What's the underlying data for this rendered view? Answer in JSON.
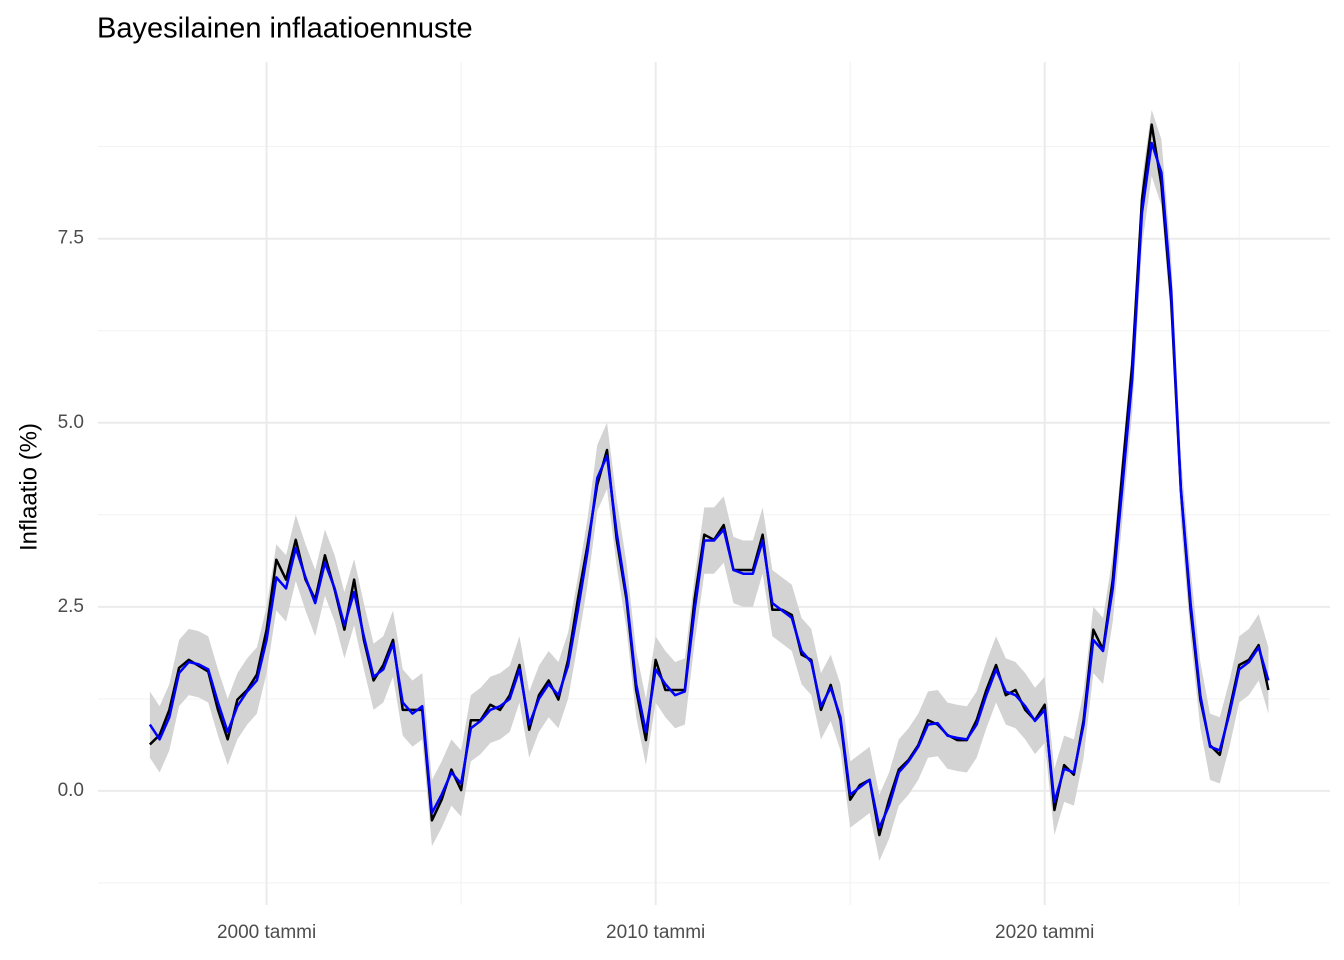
{
  "chart_data": {
    "type": "line",
    "title": "Bayesilainen inflaatioennuste",
    "y_label": "Inflaatio (%)",
    "x": [
      "1997-01",
      "1997-04",
      "1997-07",
      "1997-10",
      "1998-01",
      "1998-04",
      "1998-07",
      "1998-10",
      "1999-01",
      "1999-04",
      "1999-07",
      "1999-10",
      "2000-01",
      "2000-04",
      "2000-07",
      "2000-10",
      "2001-01",
      "2001-04",
      "2001-07",
      "2001-10",
      "2002-01",
      "2002-04",
      "2002-07",
      "2002-10",
      "2003-01",
      "2003-04",
      "2003-07",
      "2003-10",
      "2004-01",
      "2004-04",
      "2004-07",
      "2004-10",
      "2005-01",
      "2005-04",
      "2005-07",
      "2005-10",
      "2006-01",
      "2006-04",
      "2006-07",
      "2006-10",
      "2007-01",
      "2007-04",
      "2007-07",
      "2007-10",
      "2008-01",
      "2008-04",
      "2008-07",
      "2008-10",
      "2009-01",
      "2009-04",
      "2009-07",
      "2009-10",
      "2010-01",
      "2010-04",
      "2010-07",
      "2010-10",
      "2011-01",
      "2011-04",
      "2011-07",
      "2011-10",
      "2012-01",
      "2012-04",
      "2012-07",
      "2012-10",
      "2013-01",
      "2013-04",
      "2013-07",
      "2013-10",
      "2014-01",
      "2014-04",
      "2014-07",
      "2014-10",
      "2015-01",
      "2015-04",
      "2015-07",
      "2015-10",
      "2016-01",
      "2016-04",
      "2016-07",
      "2016-10",
      "2017-01",
      "2017-04",
      "2017-07",
      "2017-10",
      "2018-01",
      "2018-04",
      "2018-07",
      "2018-10",
      "2019-01",
      "2019-04",
      "2019-07",
      "2019-10",
      "2020-01",
      "2020-04",
      "2020-07",
      "2020-10",
      "2021-01",
      "2021-04",
      "2021-07",
      "2021-10",
      "2022-01",
      "2022-04",
      "2022-07",
      "2022-10",
      "2023-01",
      "2023-04",
      "2023-07",
      "2023-10",
      "2024-01",
      "2024-04",
      "2024-07",
      "2024-10",
      "2025-01",
      "2025-04",
      "2025-07",
      "2025-10"
    ],
    "series": [
      {
        "color": "#000000",
        "values": [
          0.63,
          0.76,
          1.1,
          1.67,
          1.78,
          1.7,
          1.62,
          1.1,
          0.7,
          1.24,
          1.37,
          1.58,
          2.19,
          3.14,
          2.87,
          3.41,
          2.87,
          2.6,
          3.2,
          2.73,
          2.19,
          2.87,
          2.05,
          1.5,
          1.71,
          2.05,
          1.1,
          1.1,
          1.1,
          -0.4,
          -0.12,
          0.29,
          0.01,
          0.96,
          0.96,
          1.17,
          1.1,
          1.3,
          1.71,
          0.83,
          1.3,
          1.5,
          1.24,
          1.78,
          2.6,
          3.34,
          4.16,
          4.63,
          3.41,
          2.6,
          1.37,
          0.69,
          1.78,
          1.37,
          1.37,
          1.37,
          2.6,
          3.48,
          3.41,
          3.61,
          3.0,
          3.0,
          3.0,
          3.48,
          2.46,
          2.46,
          2.39,
          1.85,
          1.78,
          1.1,
          1.44,
          0.96,
          -0.12,
          0.08,
          0.15,
          -0.6,
          -0.12,
          0.29,
          0.42,
          0.62,
          0.96,
          0.9,
          0.76,
          0.69,
          0.69,
          0.96,
          1.37,
          1.71,
          1.3,
          1.37,
          1.1,
          0.96,
          1.17,
          -0.26,
          0.35,
          0.22,
          0.96,
          2.19,
          1.92,
          2.87,
          4.36,
          5.79,
          8.03,
          9.05,
          8.23,
          6.67,
          4.09,
          2.46,
          1.24,
          0.62,
          0.49,
          1.1,
          1.71,
          1.78,
          1.98,
          1.37
        ]
      },
      {
        "color": "#0000ff",
        "values": [
          0.9,
          0.7,
          1.0,
          1.6,
          1.75,
          1.72,
          1.65,
          1.2,
          0.8,
          1.15,
          1.35,
          1.5,
          2.05,
          2.9,
          2.75,
          3.3,
          2.9,
          2.55,
          3.1,
          2.75,
          2.25,
          2.7,
          2.1,
          1.55,
          1.65,
          2.0,
          1.2,
          1.05,
          1.15,
          -0.3,
          -0.05,
          0.25,
          0.1,
          0.85,
          0.95,
          1.1,
          1.15,
          1.25,
          1.65,
          0.9,
          1.25,
          1.45,
          1.3,
          1.7,
          2.45,
          3.25,
          4.25,
          4.55,
          3.5,
          2.65,
          1.45,
          0.8,
          1.65,
          1.45,
          1.3,
          1.35,
          2.45,
          3.4,
          3.4,
          3.55,
          3.0,
          2.95,
          2.95,
          3.4,
          2.55,
          2.45,
          2.35,
          1.9,
          1.75,
          1.15,
          1.4,
          1.0,
          -0.05,
          0.05,
          0.15,
          -0.5,
          -0.2,
          0.25,
          0.4,
          0.6,
          0.9,
          0.92,
          0.75,
          0.72,
          0.7,
          0.9,
          1.3,
          1.65,
          1.35,
          1.3,
          1.15,
          0.95,
          1.1,
          -0.15,
          0.3,
          0.25,
          0.9,
          2.05,
          1.9,
          2.75,
          4.15,
          5.6,
          7.85,
          8.8,
          8.4,
          6.8,
          4.1,
          2.55,
          1.3,
          0.6,
          0.55,
          1.05,
          1.65,
          1.75,
          1.95,
          1.5
        ]
      }
    ],
    "band": {
      "color": "#d3d3d3",
      "lower": [
        0.45,
        0.25,
        0.55,
        1.15,
        1.3,
        1.27,
        1.2,
        0.75,
        0.35,
        0.7,
        0.9,
        1.05,
        1.6,
        2.45,
        2.3,
        2.85,
        2.45,
        2.1,
        2.65,
        2.3,
        1.8,
        2.25,
        1.65,
        1.1,
        1.2,
        1.55,
        0.75,
        0.6,
        0.7,
        -0.75,
        -0.5,
        -0.2,
        -0.35,
        0.4,
        0.5,
        0.65,
        0.7,
        0.8,
        1.2,
        0.45,
        0.8,
        1.0,
        0.85,
        1.25,
        2.0,
        2.8,
        3.8,
        4.1,
        3.05,
        2.2,
        1.0,
        0.35,
        1.2,
        1.0,
        0.85,
        0.9,
        2.0,
        2.95,
        2.95,
        3.1,
        2.55,
        2.5,
        2.5,
        2.95,
        2.1,
        2.0,
        1.9,
        1.45,
        1.3,
        0.7,
        0.95,
        0.55,
        -0.5,
        -0.4,
        -0.3,
        -0.95,
        -0.65,
        -0.2,
        -0.05,
        0.15,
        0.45,
        0.47,
        0.3,
        0.27,
        0.25,
        0.45,
        0.85,
        1.2,
        0.9,
        0.85,
        0.7,
        0.5,
        0.65,
        -0.6,
        -0.15,
        -0.2,
        0.45,
        1.6,
        1.45,
        2.3,
        3.7,
        5.15,
        7.4,
        8.35,
        7.95,
        6.35,
        3.65,
        2.1,
        0.85,
        0.15,
        0.1,
        0.6,
        1.2,
        1.3,
        1.5,
        1.05
      ],
      "upper": [
        1.35,
        1.15,
        1.45,
        2.05,
        2.2,
        2.17,
        2.1,
        1.65,
        1.25,
        1.6,
        1.8,
        1.95,
        2.5,
        3.35,
        3.2,
        3.75,
        3.35,
        3.0,
        3.55,
        3.2,
        2.7,
        3.15,
        2.55,
        2.0,
        2.1,
        2.45,
        1.65,
        1.5,
        1.6,
        0.15,
        0.4,
        0.7,
        0.55,
        1.3,
        1.4,
        1.55,
        1.6,
        1.7,
        2.1,
        1.35,
        1.7,
        1.9,
        1.75,
        2.15,
        2.9,
        3.7,
        4.7,
        5.0,
        3.95,
        3.1,
        1.9,
        1.25,
        2.1,
        1.9,
        1.75,
        1.8,
        2.9,
        3.85,
        3.85,
        4.0,
        3.45,
        3.4,
        3.4,
        3.85,
        3.0,
        2.9,
        2.8,
        2.35,
        2.2,
        1.6,
        1.85,
        1.45,
        0.4,
        0.5,
        0.6,
        -0.05,
        0.25,
        0.7,
        0.85,
        1.05,
        1.35,
        1.37,
        1.2,
        1.17,
        1.15,
        1.35,
        1.75,
        2.1,
        1.8,
        1.75,
        1.6,
        1.4,
        1.55,
        0.3,
        0.75,
        0.7,
        1.35,
        2.5,
        2.35,
        3.2,
        4.6,
        6.05,
        8.3,
        9.25,
        8.85,
        7.25,
        4.55,
        3.0,
        1.75,
        1.05,
        1.0,
        1.5,
        2.1,
        2.2,
        2.4,
        1.95
      ]
    },
    "xlim": [
      "1995-09",
      "2027-05"
    ],
    "xticks": [
      {
        "value": "2000-01",
        "label": "2000 tammi"
      },
      {
        "value": "2010-01",
        "label": "2010 tammi"
      },
      {
        "value": "2020-01",
        "label": "2020 tammi"
      }
    ],
    "ylim": [
      -1.55,
      9.9
    ],
    "yticks": [
      {
        "value": 0,
        "label": "0.0"
      },
      2.5,
      {
        "value": 5,
        "label": "5.0"
      },
      7.5
    ],
    "grid": true
  }
}
